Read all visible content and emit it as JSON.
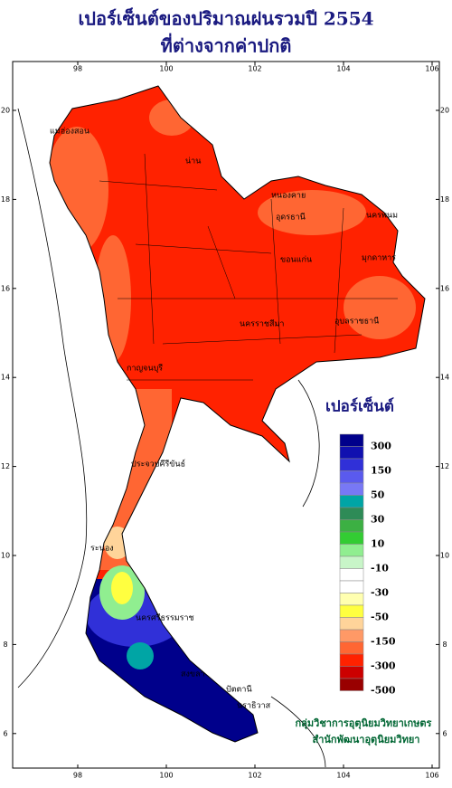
{
  "title": [
    "เปอร์เซ็นต์ของปริมาณฝนรวมปี 2554",
    "ที่ต่างจากค่าปกติ"
  ],
  "map": {
    "xticks": [
      98,
      100,
      102,
      104,
      106
    ],
    "yticks": [
      20,
      18,
      16,
      14,
      12,
      10,
      8,
      6
    ],
    "places": [
      "แม่ฮ่องสอน",
      "น่าน",
      "หนองคาย",
      "อุดรธานี",
      "นครพนม",
      "ขอนแก่น",
      "มุกดาหาร",
      "นครราชสีมา",
      "อุบลราชธานี",
      "กาญจนบุรี",
      "ประจวบคีรีขันธ์",
      "ระนอง",
      "นครศรีธรรมราช",
      "สงขลา",
      "ปัตตานี",
      "นราธิวาส"
    ]
  },
  "legend": {
    "title": "เปอร์เซ็นต์",
    "labels": [
      300,
      150,
      50,
      30,
      10,
      -10,
      -30,
      -50,
      -150,
      -300,
      -500
    ],
    "colors": [
      "#00008b",
      "#1010b0",
      "#3030d8",
      "#5a5aee",
      "#7878f5",
      "#00a5a5",
      "#2e8b57",
      "#3cb043",
      "#33cc33",
      "#90ee90",
      "#c8f5c8",
      "#ffffff",
      "#ffffff",
      "#ffffb0",
      "#ffff40",
      "#ffd49a",
      "#ff9966",
      "#ff6633",
      "#ff2200",
      "#cc0000",
      "#990000"
    ]
  },
  "footer": [
    "กลุ่มวิชาการอุตุนิยมวิทยาเกษตร",
    "สำนักพัฒนาอุตุนิยมวิทยา"
  ]
}
